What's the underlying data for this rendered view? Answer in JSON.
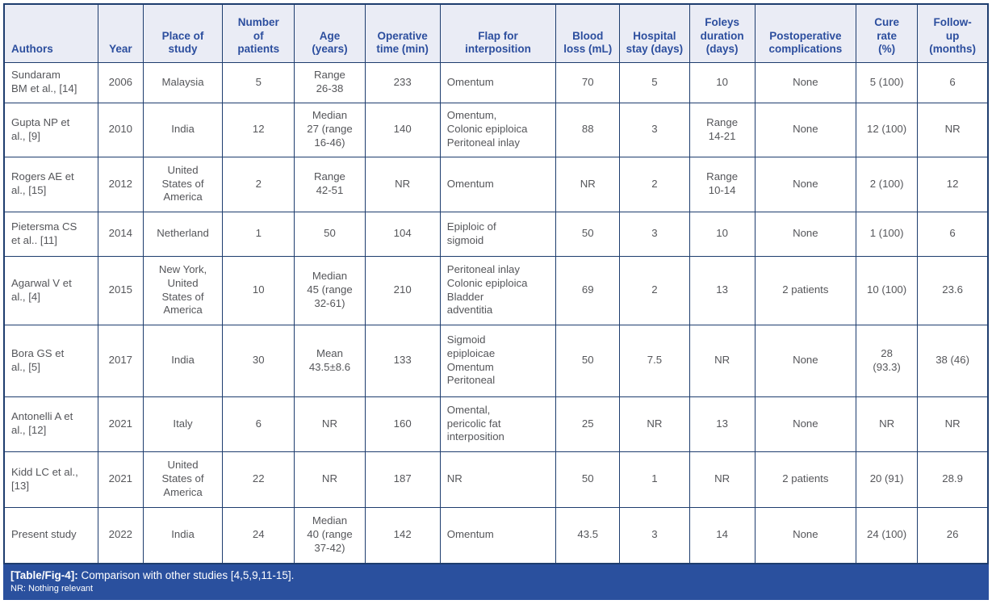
{
  "colors": {
    "header_bg": "#eaecf5",
    "header_text": "#2c4e9e",
    "border": "#1e3d6e",
    "body_text": "#55565a",
    "caption_bg": "#2a509e",
    "caption_text": "#ffffff"
  },
  "table": {
    "columns": [
      "Authors",
      "Year",
      "Place of\nstudy",
      "Number\nof\npatients",
      "Age\n(years)",
      "Operative\ntime (min)",
      "Flap for\ninterposition",
      "Blood\nloss (mL)",
      "Hospital\nstay (days)",
      "Foleys\nduration\n(days)",
      "Postoperative\ncomplications",
      "Cure\nrate\n(%)",
      "Follow-\nup\n(months)"
    ],
    "rows": [
      [
        "Sundaram\nBM et al., [14]",
        "2006",
        "Malaysia",
        "5",
        "Range\n26-38",
        "233",
        "Omentum",
        "70",
        "5",
        "10",
        "None",
        "5 (100)",
        "6"
      ],
      [
        "Gupta NP et\nal., [9]",
        "2010",
        "India",
        "12",
        "Median\n27 (range\n16-46)",
        "140",
        "Omentum,\nColonic epiploica\nPeritoneal inlay",
        "88",
        "3",
        "Range\n14-21",
        "None",
        "12 (100)",
        "NR"
      ],
      [
        "Rogers AE et\nal., [15]",
        "2012",
        "United\nStates of\nAmerica",
        "2",
        "Range\n42-51",
        "NR",
        "Omentum",
        "NR",
        "2",
        "Range\n10-14",
        "None",
        "2 (100)",
        "12"
      ],
      [
        "Pietersma CS\net al.. [11]",
        "2014",
        "Netherland",
        "1",
        "50",
        "104",
        "Epiploic of\nsigmoid",
        "50",
        "3",
        "10",
        "None",
        "1 (100)",
        "6"
      ],
      [
        "Agarwal V et\nal., [4]",
        "2015",
        "New York,\nUnited\nStates of\nAmerica",
        "10",
        "Median\n45 (range\n32-61)",
        "210",
        "Peritoneal inlay\nColonic epiploica\nBladder\nadventitia",
        "69",
        "2",
        "13",
        "2 patients",
        "10 (100)",
        "23.6"
      ],
      [
        "Bora GS et\nal., [5]",
        "2017",
        "India",
        "30",
        "Mean\n43.5±8.6",
        "133",
        "Sigmoid\nepiploicae\nOmentum\nPeritoneal",
        "50",
        "7.5",
        "NR",
        "None",
        "28\n(93.3)",
        "38 (46)"
      ],
      [
        "Antonelli A et\nal., [12]",
        "2021",
        "Italy",
        "6",
        "NR",
        "160",
        "Omental,\npericolic fat\ninterposition",
        "25",
        "NR",
        "13",
        "None",
        "NR",
        "NR"
      ],
      [
        "Kidd LC et al.,\n[13]",
        "2021",
        "United\nStates of\nAmerica",
        "22",
        "NR",
        "187",
        "NR",
        "50",
        "1",
        "NR",
        "2 patients",
        "20 (91)",
        "28.9"
      ],
      [
        "Present study",
        "2022",
        "India",
        "24",
        "Median\n40 (range\n37-42)",
        "142",
        "Omentum",
        "43.5",
        "3",
        "14",
        "None",
        "24 (100)",
        "26"
      ]
    ]
  },
  "caption": {
    "tag": "[Table/Fig-4]:",
    "text": " Comparison with other studies [4,5,9,11-15].",
    "footnote": "NR: Nothing relevant"
  }
}
